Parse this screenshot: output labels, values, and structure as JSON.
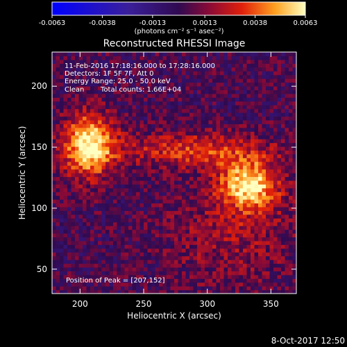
{
  "chart_data": {
    "type": "heatmap",
    "title": "Reconstructed RHESSI Image",
    "xlabel": "Heliocentric X (arcsec)",
    "ylabel": "Heliocentric Y (arcsec)",
    "xlim": [
      178,
      370
    ],
    "ylim": [
      30,
      228
    ],
    "x_ticks": [
      200,
      250,
      300,
      350
    ],
    "y_ticks": [
      50,
      100,
      150,
      200
    ],
    "colorbar": {
      "range": [
        -0.0063,
        0.0063
      ],
      "tick_values": [
        -0.0063,
        -0.0038,
        -0.0013,
        0.0013,
        0.0038,
        0.0063
      ],
      "tick_labels": [
        "-0.0063",
        "-0.0038",
        "-0.0013",
        "0.0013",
        "0.0038",
        "0.0063"
      ],
      "unit_label": "(photons cm⁻² s⁻¹ asec⁻²)"
    },
    "annotations": [
      "11-Feb-2016 17:18:16.000 to 17:28:16.000",
      "Detectors: 1F 5F 7F, Att 0",
      "Energy Range: 25.0 - 50.0 keV",
      "Clean",
      "Total counts: 1.66E+04"
    ],
    "peak_label": "Position of Peak = [207,152]",
    "sources": [
      {
        "x": 207,
        "y": 152,
        "peak": 0.0063
      },
      {
        "x": 333,
        "y": 120,
        "peak": 0.0056
      },
      {
        "x": 290,
        "y": 148,
        "peak": 0.003
      }
    ],
    "grid": false
  },
  "footer": {
    "date": "8-Oct-2017 12:50"
  }
}
